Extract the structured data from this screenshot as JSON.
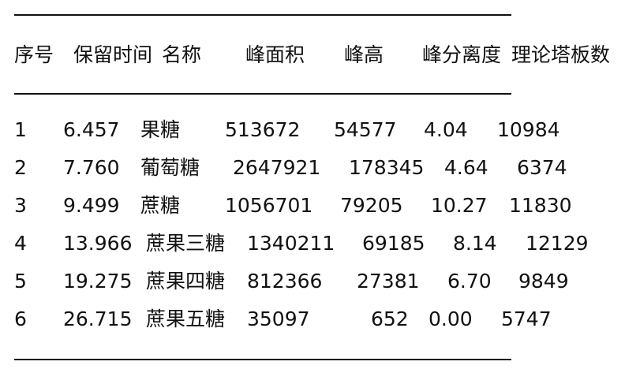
{
  "table": {
    "headers": [
      "序号",
      "保留时间",
      "名称",
      "峰面积",
      "峰高",
      "峰分离度",
      "理论塔板数"
    ],
    "rows": [
      [
        "1",
        "6.457",
        "果糖",
        "513672",
        "54577",
        "4.04",
        "10984"
      ],
      [
        "2",
        "7.760",
        "葡萄糖",
        "2647921",
        "178345",
        "4.64",
        "6374"
      ],
      [
        "3",
        "9.499",
        "蔗糖",
        "1056701",
        "79205",
        "10.27",
        "11830"
      ],
      [
        "4",
        "13.966",
        "蔗果三糖",
        "1340211",
        "69185",
        "8.14",
        "12129"
      ],
      [
        "5",
        "19.275",
        "蔗果四糖",
        "812366",
        "27381",
        "6.70",
        "9849"
      ],
      [
        "6",
        "26.715",
        "蔗果五糖",
        "35097",
        "652",
        "0.00",
        "5747"
      ]
    ]
  }
}
